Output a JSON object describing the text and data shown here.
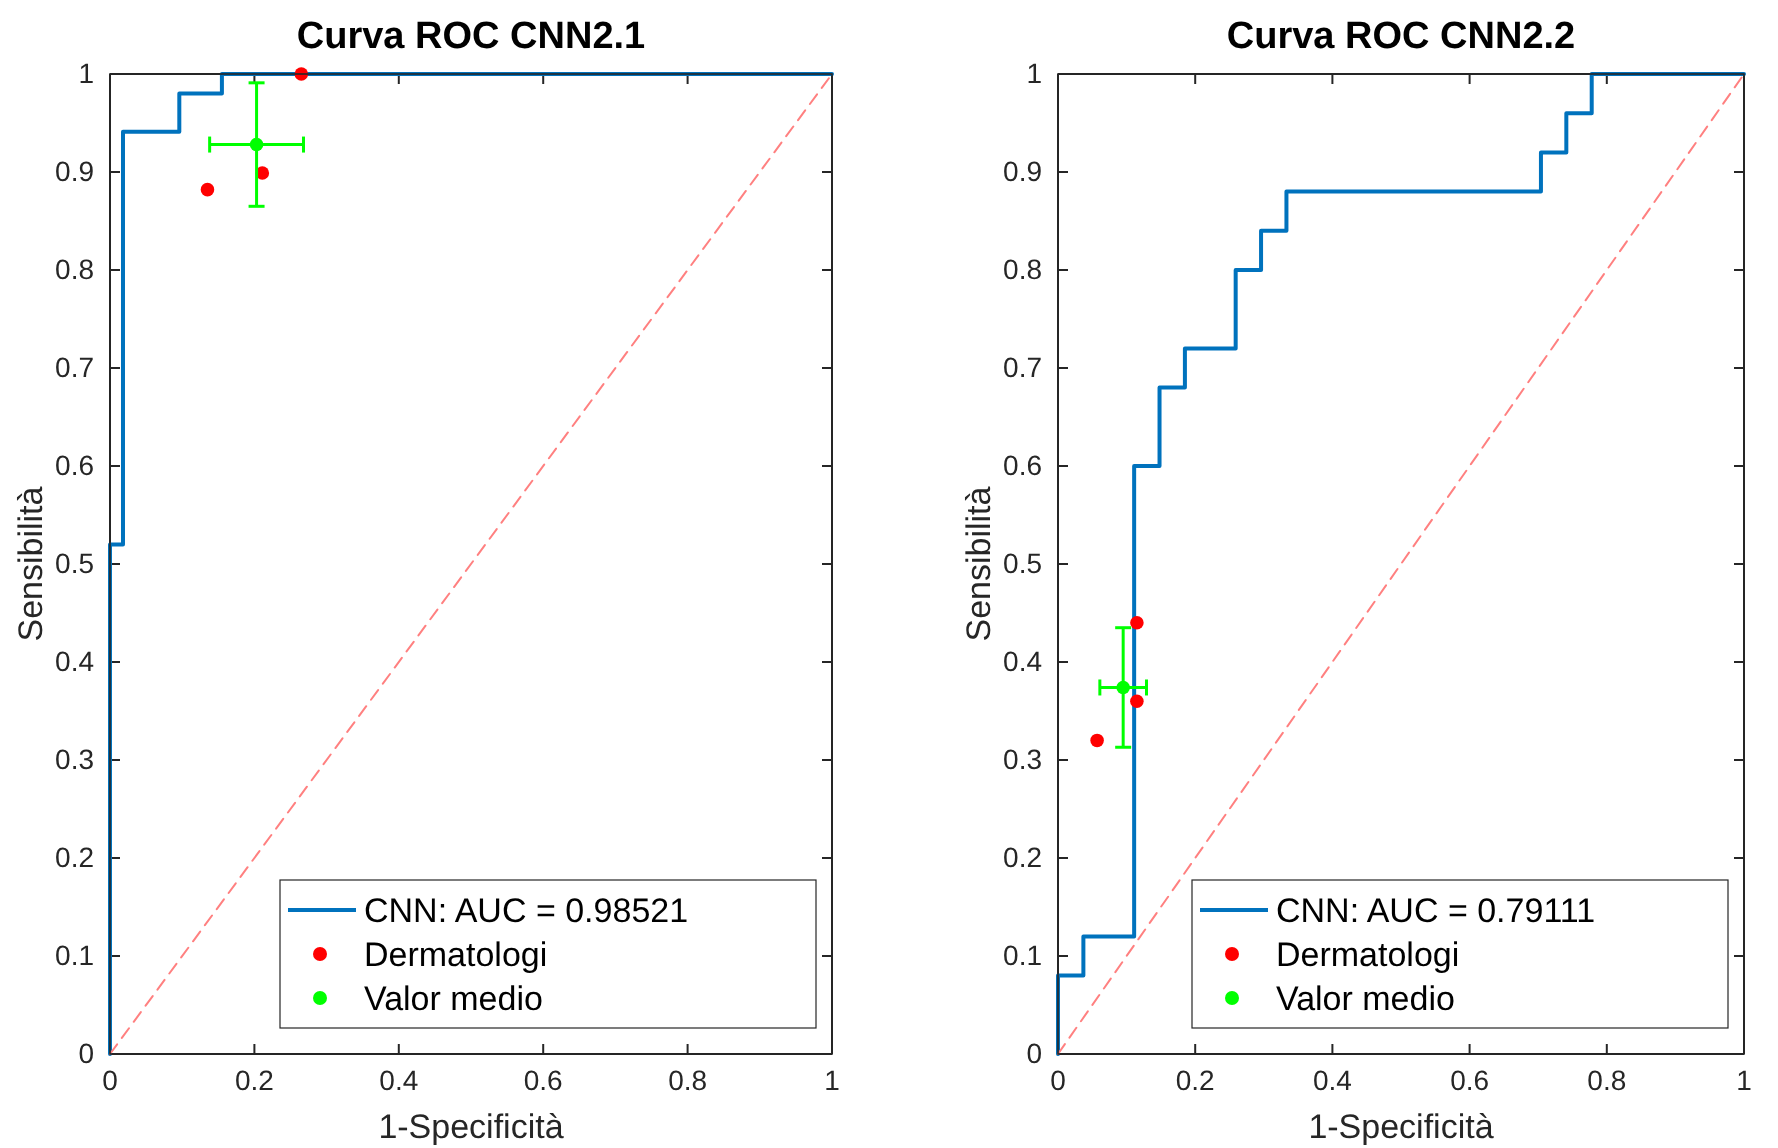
{
  "chart_data": [
    {
      "type": "line",
      "title": "Curva ROC CNN2.1",
      "xlabel": "1-Specificità",
      "ylabel": "Sensibilità",
      "xlim": [
        0,
        1
      ],
      "ylim": [
        0,
        1
      ],
      "xticks": [
        0,
        0.2,
        0.4,
        0.6,
        0.8,
        1
      ],
      "yticks": [
        0,
        0.1,
        0.2,
        0.3,
        0.4,
        0.5,
        0.6,
        0.7,
        0.8,
        0.9,
        1
      ],
      "grid": false,
      "legend": "bottom right",
      "series": [
        {
          "name": "CNN: AUC = 0.98521",
          "color": "#0072bd",
          "line_style": "solid",
          "marker": "none",
          "x": [
            0,
            0,
            0.018,
            0.018,
            0.096,
            0.096,
            0.155,
            0.155,
            1
          ],
          "values": [
            0,
            0.52,
            0.52,
            0.941,
            0.941,
            0.98,
            0.98,
            1,
            1
          ]
        },
        {
          "type": "line",
          "color": "#ff8080",
          "line_style": "dashed",
          "marker": "none",
          "x": [
            0,
            1
          ],
          "values": [
            0,
            1
          ]
        },
        {
          "type": "scatter",
          "name": "Dermatologi",
          "color": "#ff0000",
          "marker": "circle",
          "x": [
            0.135,
            0.211,
            0.265
          ],
          "values": [
            0.882,
            0.899,
            1.0
          ]
        },
        {
          "type": "scatter",
          "name": "Valor medio",
          "color": "#00ff00",
          "marker": "circle",
          "x": [
            0.203
          ],
          "values": [
            0.928
          ],
          "errors": [
            0.063
          ],
          "xerrors": [
            0.065
          ]
        }
      ]
    },
    {
      "type": "line",
      "title": "Curva ROC CNN2.2",
      "xlabel": "1-Specificità",
      "ylabel": "Sensibilità",
      "xlim": [
        0,
        1
      ],
      "ylim": [
        0,
        1
      ],
      "xticks": [
        0,
        0.2,
        0.4,
        0.6,
        0.8,
        1
      ],
      "yticks": [
        0,
        0.1,
        0.2,
        0.3,
        0.4,
        0.5,
        0.6,
        0.7,
        0.8,
        0.9,
        1
      ],
      "grid": false,
      "legend": "bottom right",
      "series": [
        {
          "name": "CNN: AUC = 0.79111",
          "color": "#0072bd",
          "line_style": "solid",
          "marker": "none",
          "x": [
            0,
            0,
            0.037,
            0.037,
            0.111,
            0.111,
            0.148,
            0.148,
            0.185,
            0.185,
            0.259,
            0.259,
            0.296,
            0.296,
            0.333,
            0.333,
            0.704,
            0.704,
            0.741,
            0.741,
            0.778,
            0.778,
            1
          ],
          "values": [
            0,
            0.08,
            0.08,
            0.12,
            0.12,
            0.6,
            0.6,
            0.68,
            0.68,
            0.72,
            0.72,
            0.8,
            0.8,
            0.84,
            0.84,
            0.88,
            0.88,
            0.92,
            0.92,
            0.96,
            0.96,
            1,
            1
          ]
        },
        {
          "type": "line",
          "color": "#ff8080",
          "line_style": "dashed",
          "marker": "none",
          "x": [
            0,
            1
          ],
          "values": [
            0,
            1
          ]
        },
        {
          "type": "scatter",
          "name": "Dermatologi",
          "color": "#ff0000",
          "marker": "circle",
          "x": [
            0.057,
            0.115,
            0.115
          ],
          "values": [
            0.32,
            0.44,
            0.36
          ]
        },
        {
          "type": "scatter",
          "name": "Valor medio",
          "color": "#00ff00",
          "marker": "circle",
          "x": [
            0.095
          ],
          "values": [
            0.374
          ],
          "errors": [
            0.061
          ],
          "xerrors": [
            0.034
          ]
        }
      ]
    }
  ]
}
